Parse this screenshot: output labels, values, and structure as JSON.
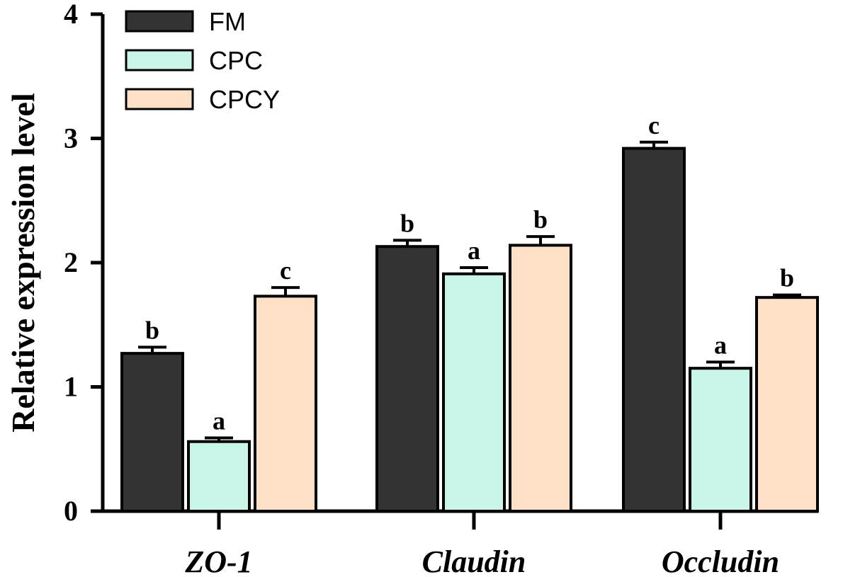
{
  "chart_data": {
    "type": "bar",
    "title": "",
    "xlabel": "",
    "ylabel": "Relative expression level",
    "ylim": [
      0,
      4
    ],
    "yticks": [
      0,
      1,
      2,
      3,
      4
    ],
    "grid": false,
    "legend_position": "top-left",
    "categories": [
      "ZO-1",
      "Claudin",
      "Occludin"
    ],
    "series": [
      {
        "name": "FM",
        "color": "#333333",
        "values": [
          1.27,
          2.13,
          2.92
        ],
        "errors": [
          0.05,
          0.05,
          0.05
        ],
        "labels": [
          "b",
          "b",
          "c"
        ]
      },
      {
        "name": "CPC",
        "color": "#c8f5e8",
        "values": [
          0.56,
          1.91,
          1.15
        ],
        "errors": [
          0.03,
          0.05,
          0.05
        ],
        "labels": [
          "a",
          "a",
          "a"
        ]
      },
      {
        "name": "CPCY",
        "color": "#fde0c5",
        "values": [
          1.73,
          2.14,
          1.72
        ],
        "errors": [
          0.07,
          0.07,
          0.02
        ],
        "labels": [
          "c",
          "b",
          "b"
        ]
      }
    ]
  }
}
